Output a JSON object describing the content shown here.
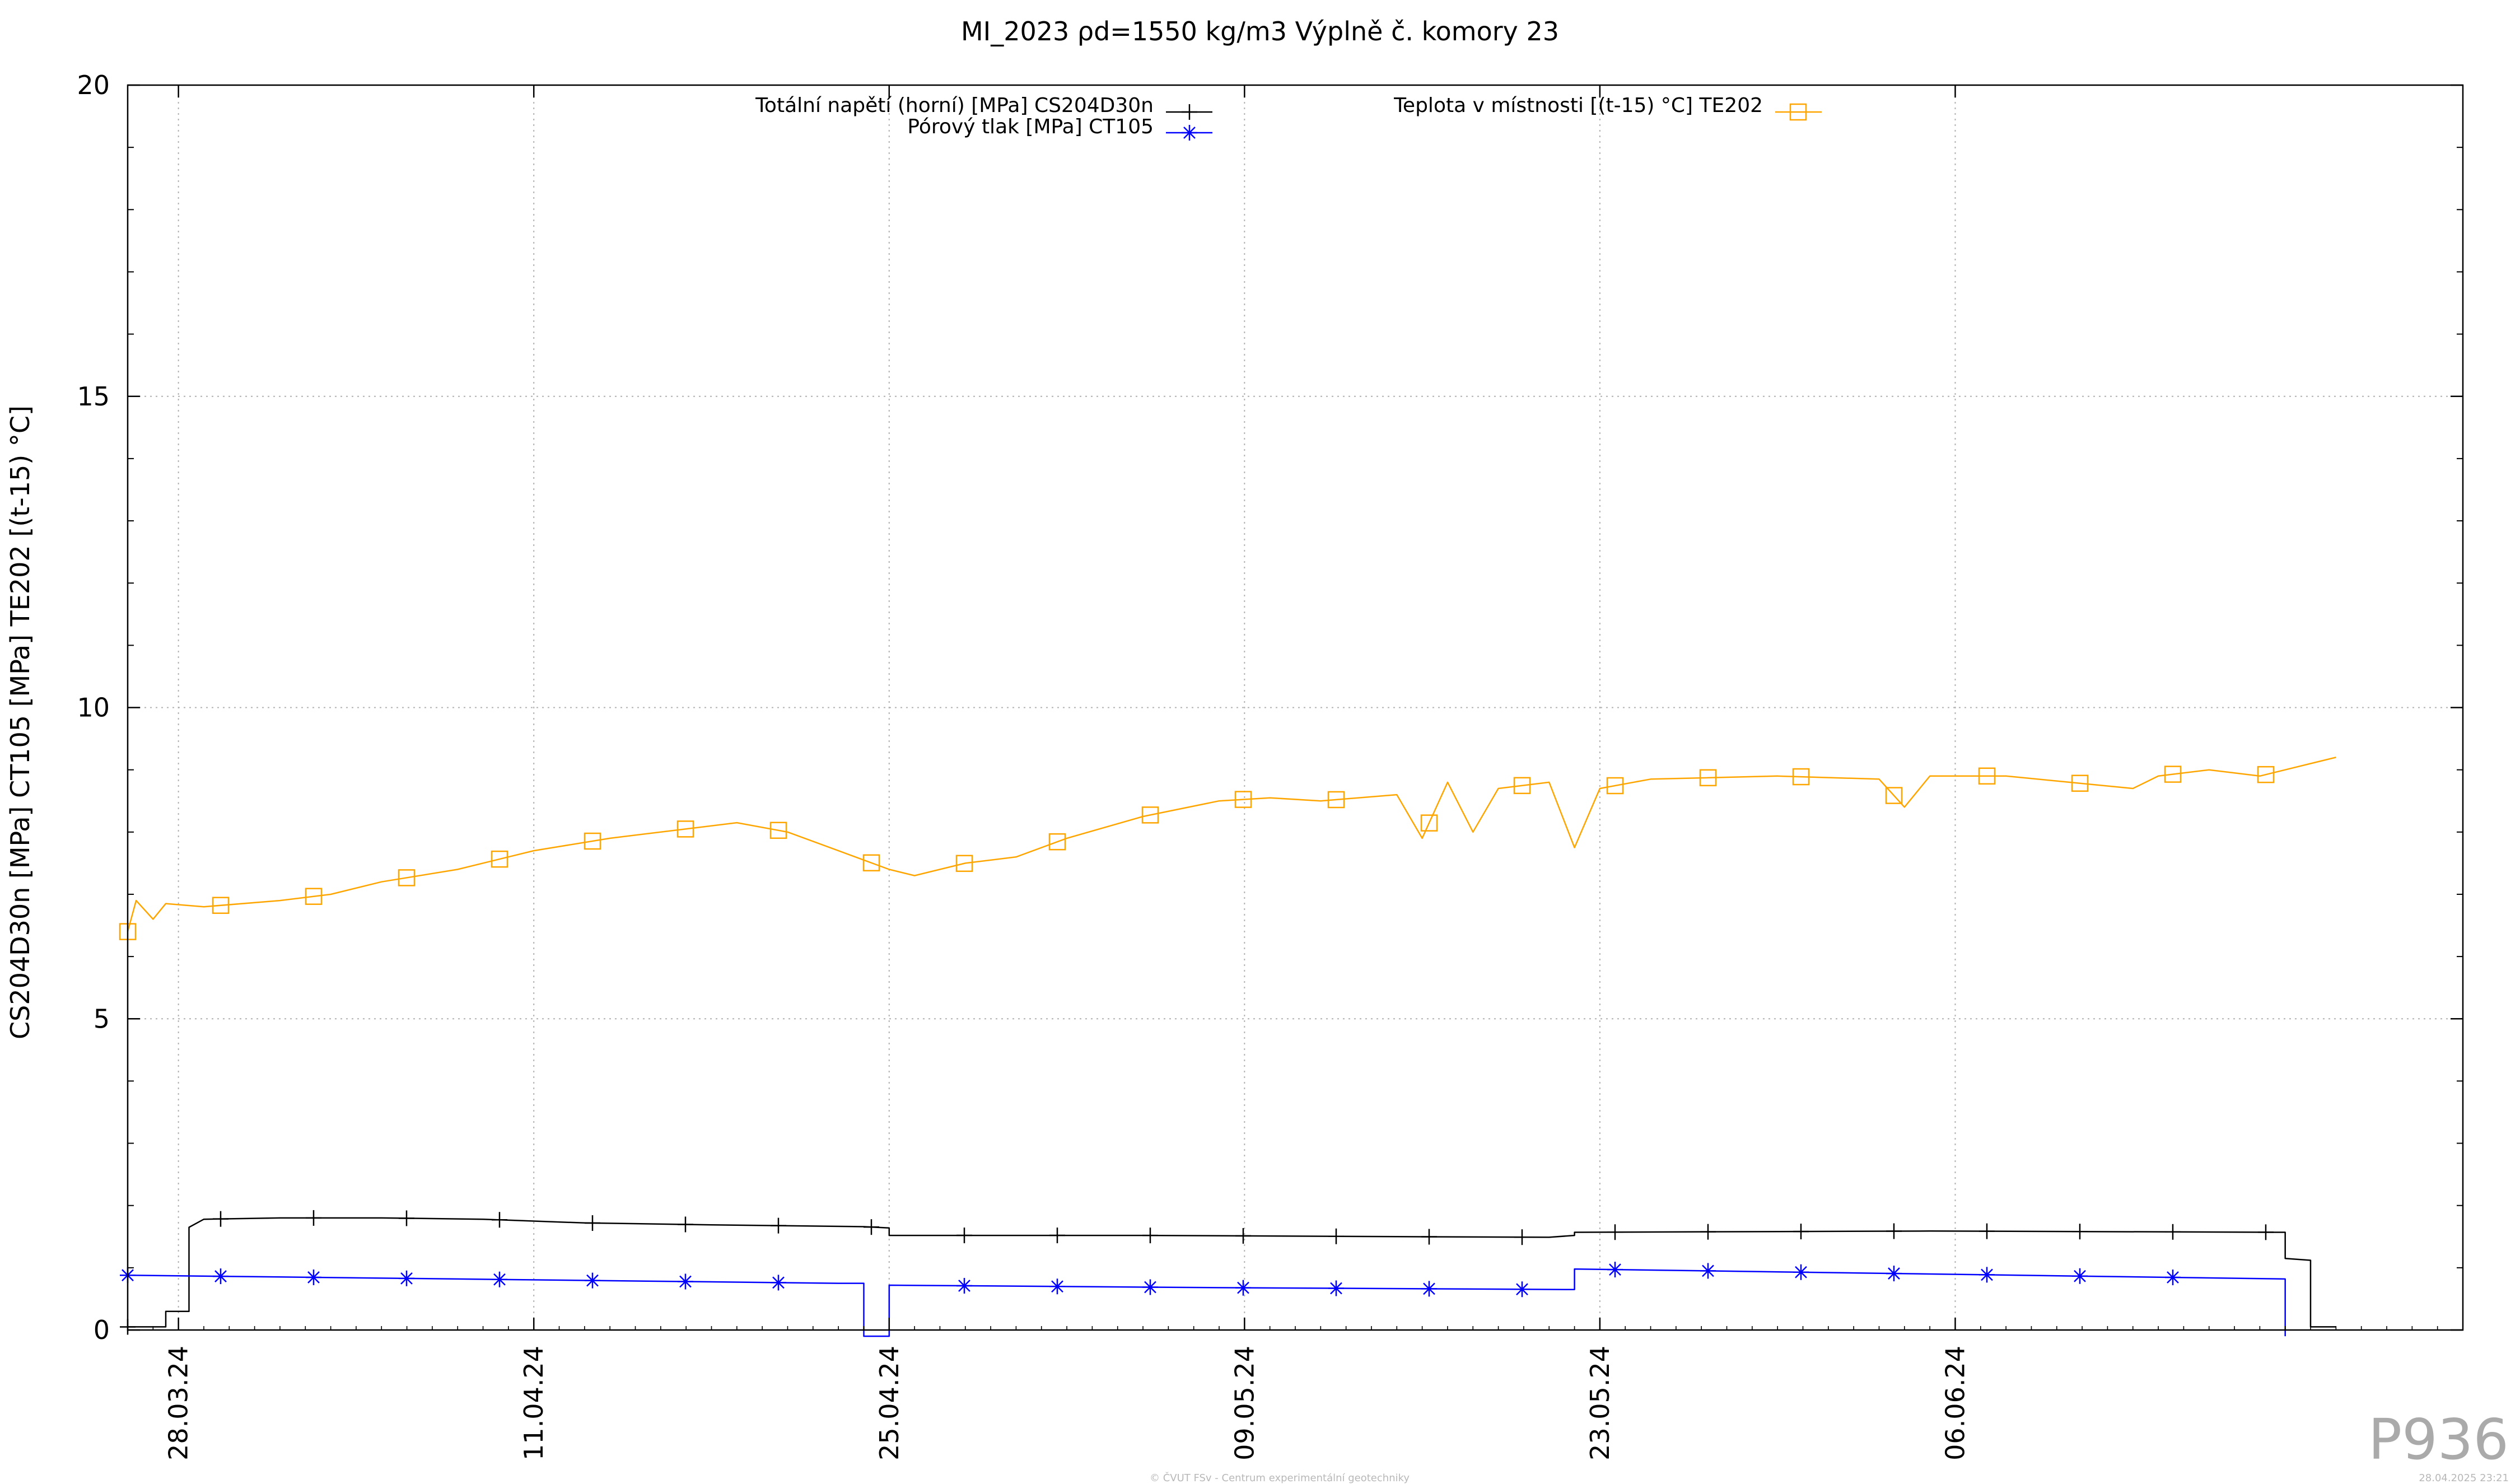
{
  "chart_data": {
    "type": "line",
    "title": "MI_2023 ρd=1550 kg/m3 Výplně č. komory 23",
    "ylabel": "CS204D30n [MPa] CT105 [MPa] TE202 [(t-15) °C]",
    "xlabel": "",
    "ylim": [
      0,
      20
    ],
    "y_ticks": [
      0,
      5,
      10,
      15,
      20
    ],
    "xlim": [
      "2024-03-26",
      "2024-06-26"
    ],
    "x_ticks": [
      "28.03.24",
      "11.04.24",
      "25.04.24",
      "09.05.24",
      "23.05.24",
      "06.06.24"
    ],
    "x_tick_dates": [
      "2024-03-28",
      "2024-04-11",
      "2024-04-25",
      "2024-05-09",
      "2024-05-23",
      "2024-06-06"
    ],
    "grid": true,
    "legend_position": "top",
    "series": [
      {
        "name": "Totální napětí (horní) [MPa] CS204D30n",
        "color": "#000000",
        "marker": "plus",
        "points": [
          [
            "2024-03-26",
            0.05
          ],
          [
            "2024-03-27 12:00",
            0.05
          ],
          [
            "2024-03-27 12:00",
            0.3
          ],
          [
            "2024-03-28 10:00",
            0.3
          ],
          [
            "2024-03-28 10:00",
            1.65
          ],
          [
            "2024-03-29",
            1.78
          ],
          [
            "2024-04-01",
            1.8
          ],
          [
            "2024-04-05",
            1.8
          ],
          [
            "2024-04-09",
            1.78
          ],
          [
            "2024-04-13",
            1.72
          ],
          [
            "2024-04-18",
            1.69
          ],
          [
            "2024-04-24",
            1.66
          ],
          [
            "2024-04-25",
            1.64
          ],
          [
            "2024-04-25",
            1.52
          ],
          [
            "2024-05-05",
            1.52
          ],
          [
            "2024-05-15",
            1.5
          ],
          [
            "2024-05-21",
            1.49
          ],
          [
            "2024-05-22",
            1.52
          ],
          [
            "2024-05-22",
            1.57
          ],
          [
            "2024-06-05",
            1.59
          ],
          [
            "2024-06-19",
            1.57
          ],
          [
            "2024-06-19",
            1.15
          ],
          [
            "2024-06-20",
            1.12
          ],
          [
            "2024-06-20",
            0.05
          ],
          [
            "2024-06-21",
            0.05
          ]
        ]
      },
      {
        "name": "Pórový tlak [MPa] CT105",
        "color": "#0000ff",
        "marker": "asterisk",
        "points": [
          [
            "2024-03-26",
            0.88
          ],
          [
            "2024-04-08",
            0.82
          ],
          [
            "2024-04-23",
            0.75
          ],
          [
            "2024-04-24",
            0.75
          ],
          [
            "2024-04-24",
            -0.1
          ],
          [
            "2024-04-25",
            -0.1
          ],
          [
            "2024-04-25",
            0.72
          ],
          [
            "2024-05-08",
            0.68
          ],
          [
            "2024-05-22",
            0.65
          ],
          [
            "2024-05-22",
            0.98
          ],
          [
            "2024-06-05",
            0.9
          ],
          [
            "2024-06-19",
            0.82
          ],
          [
            "2024-06-19",
            -0.1
          ]
        ]
      },
      {
        "name": "Teplota v místnosti [(t-15) °C] TE202",
        "color": "#ffa500",
        "marker": "square",
        "points": [
          [
            "2024-03-26",
            6.4
          ],
          [
            "2024-03-26 08:00",
            6.9
          ],
          [
            "2024-03-27",
            6.6
          ],
          [
            "2024-03-27 12:00",
            6.85
          ],
          [
            "2024-03-29",
            6.8
          ],
          [
            "2024-04-01",
            6.9
          ],
          [
            "2024-04-03",
            7.0
          ],
          [
            "2024-04-05",
            7.2
          ],
          [
            "2024-04-08",
            7.4
          ],
          [
            "2024-04-11",
            7.7
          ],
          [
            "2024-04-14",
            7.9
          ],
          [
            "2024-04-17",
            8.05
          ],
          [
            "2024-04-19",
            8.15
          ],
          [
            "2024-04-21",
            8.0
          ],
          [
            "2024-04-23",
            7.7
          ],
          [
            "2024-04-25",
            7.4
          ],
          [
            "2024-04-26",
            7.3
          ],
          [
            "2024-04-28",
            7.5
          ],
          [
            "2024-04-30",
            7.6
          ],
          [
            "2024-05-02",
            7.9
          ],
          [
            "2024-05-05",
            8.25
          ],
          [
            "2024-05-08",
            8.5
          ],
          [
            "2024-05-10",
            8.55
          ],
          [
            "2024-05-12",
            8.5
          ],
          [
            "2024-05-15",
            8.6
          ],
          [
            "2024-05-16",
            7.9
          ],
          [
            "2024-05-17",
            8.8
          ],
          [
            "2024-05-18",
            8.0
          ],
          [
            "2024-05-19",
            8.7
          ],
          [
            "2024-05-21",
            8.8
          ],
          [
            "2024-05-22",
            7.75
          ],
          [
            "2024-05-23",
            8.7
          ],
          [
            "2024-05-25",
            8.85
          ],
          [
            "2024-05-30",
            8.9
          ],
          [
            "2024-06-03",
            8.85
          ],
          [
            "2024-06-04",
            8.4
          ],
          [
            "2024-06-05",
            8.9
          ],
          [
            "2024-06-08",
            8.9
          ],
          [
            "2024-06-13",
            8.7
          ],
          [
            "2024-06-14",
            8.9
          ],
          [
            "2024-06-16",
            9.0
          ],
          [
            "2024-06-18",
            8.9
          ],
          [
            "2024-06-20",
            9.1
          ],
          [
            "2024-06-21",
            9.2
          ]
        ]
      }
    ]
  },
  "corner_label": "P936",
  "footer_center": "© ČVUT FSv - Centrum experimentální geotechniky",
  "footer_right": "28.04.2025 23:21"
}
